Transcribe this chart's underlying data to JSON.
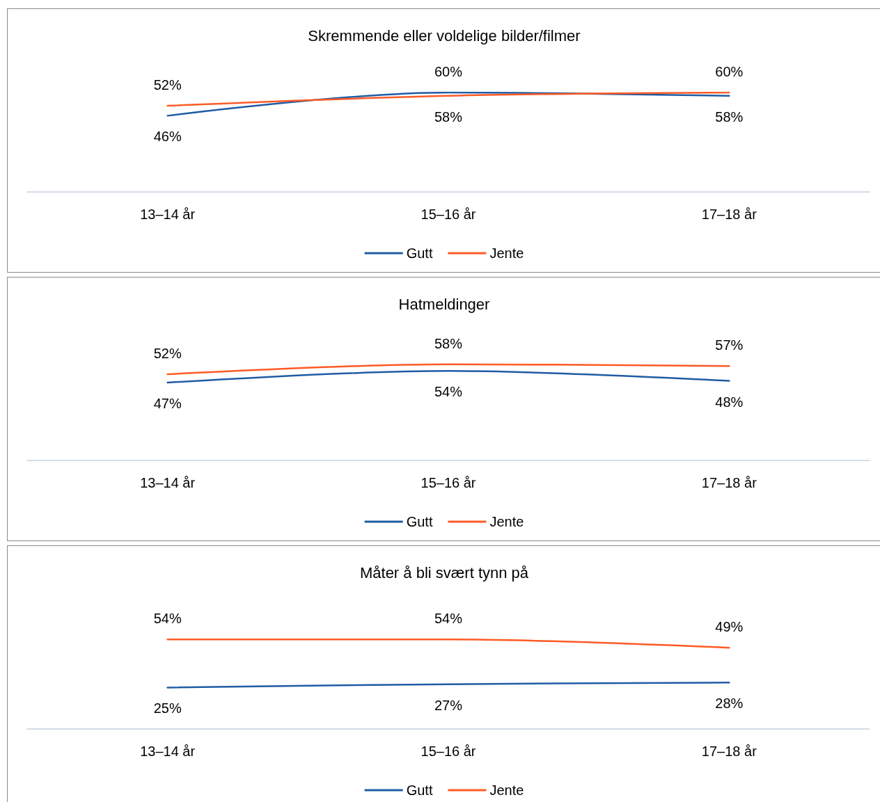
{
  "chart_data": [
    {
      "type": "line",
      "title": "Skremmende eller voldelige bilder/filmer",
      "categories": [
        "13–14 år",
        "15–16 år",
        "17–18 år"
      ],
      "legend": "bottom",
      "grid": false,
      "marker": "none",
      "tick_labels": "x",
      "series": [
        {
          "name": "Gutt",
          "color": "#1f5ca4",
          "values": [
            46,
            60,
            58
          ],
          "value_labels": [
            "46%",
            "60%",
            "58%"
          ]
        },
        {
          "name": "Jente",
          "color": "#ff5a26",
          "values": [
            52,
            58,
            60
          ],
          "value_labels": [
            "52%",
            "58%",
            "60%"
          ]
        }
      ]
    },
    {
      "type": "line",
      "title": "Hatmeldinger",
      "categories": [
        "13–14 år",
        "15–16 år",
        "17–18 år"
      ],
      "legend": "bottom",
      "grid": false,
      "marker": "none",
      "tick_labels": "x",
      "series": [
        {
          "name": "Gutt",
          "color": "#1f5ca4",
          "values": [
            47,
            54,
            48
          ],
          "value_labels": [
            "47%",
            "54%",
            "48%"
          ]
        },
        {
          "name": "Jente",
          "color": "#ff5a26",
          "values": [
            52,
            58,
            57
          ],
          "value_labels": [
            "52%",
            "58%",
            "57%"
          ]
        }
      ]
    },
    {
      "type": "line",
      "title": "Måter å bli svært tynn på",
      "categories": [
        "13–14 år",
        "15–16 år",
        "17–18 år"
      ],
      "legend": "bottom",
      "grid": false,
      "marker": "none",
      "tick_labels": "x",
      "series": [
        {
          "name": "Gutt",
          "color": "#1f5ca4",
          "values": [
            25,
            27,
            28
          ],
          "value_labels": [
            "25%",
            "27%",
            "28%"
          ]
        },
        {
          "name": "Jente",
          "color": "#ff5a26",
          "values": [
            54,
            54,
            49
          ],
          "value_labels": [
            "54%",
            "54%",
            "49%"
          ]
        }
      ]
    }
  ]
}
